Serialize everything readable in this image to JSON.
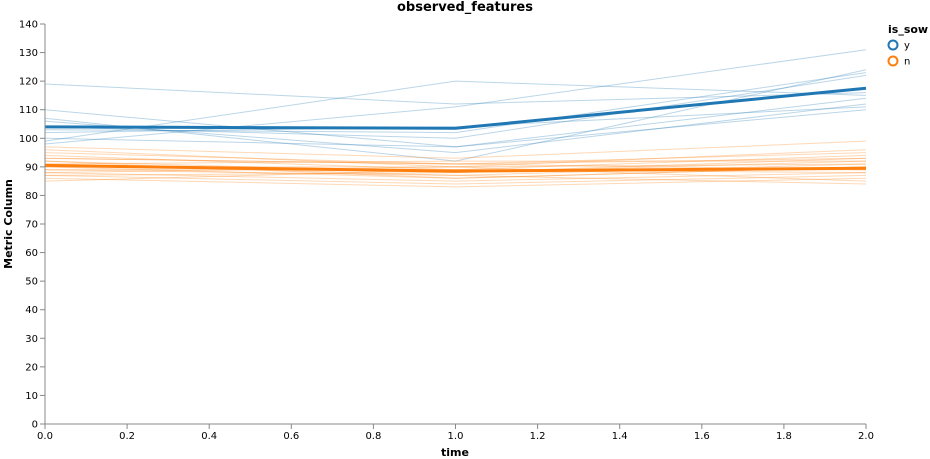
{
  "chart_data": {
    "type": "line",
    "title": "observed_features",
    "xlabel": "time",
    "ylabel": "Metric Column",
    "xlim": [
      0,
      2
    ],
    "ylim": [
      0,
      140
    ],
    "x_ticks": [
      0,
      0.2,
      0.4,
      0.6,
      0.8,
      1,
      1.2,
      1.4,
      1.6,
      1.8,
      2
    ],
    "x_tick_labels": [
      "0.0",
      "0.2",
      "0.4",
      "0.6",
      "0.8",
      "1.0",
      "1.2",
      "1.4",
      "1.6",
      "1.8",
      "2.0"
    ],
    "y_ticks": [
      0,
      10,
      20,
      30,
      40,
      50,
      60,
      70,
      80,
      90,
      100,
      110,
      120,
      130,
      140
    ],
    "y_tick_labels": [
      "0",
      "10",
      "20",
      "30",
      "40",
      "50",
      "60",
      "70",
      "80",
      "90",
      "100",
      "110",
      "120",
      "130",
      "140"
    ],
    "grid": false,
    "x": [
      0,
      1,
      2
    ],
    "legend": {
      "title": "is_sow",
      "position": "top-right",
      "entries": [
        {
          "label": "y",
          "color": "#1f77b4"
        },
        {
          "label": "n",
          "color": "#ff7f0e"
        }
      ]
    },
    "series": [
      {
        "name": "y",
        "color": "#1f77b4",
        "values": [
          104,
          103.5,
          117.5
        ]
      },
      {
        "name": "n",
        "color": "#ff7f0e",
        "values": [
          90.5,
          88.5,
          89.5
        ]
      }
    ],
    "individual_series": [
      {
        "group": "y",
        "values": [
          119,
          112,
          116
        ]
      },
      {
        "group": "y",
        "values": [
          110,
          97,
          114
        ]
      },
      {
        "group": "y",
        "values": [
          107,
          92,
          124
        ]
      },
      {
        "group": "y",
        "values": [
          99,
          120,
          115
        ]
      },
      {
        "group": "y",
        "values": [
          98,
          111,
          131
        ]
      },
      {
        "group": "y",
        "values": [
          104,
          100,
          122
        ]
      },
      {
        "group": "y",
        "values": [
          102,
          104,
          111
        ]
      },
      {
        "group": "y",
        "values": [
          100,
          97,
          110
        ]
      },
      {
        "group": "y",
        "values": [
          106,
          95,
          112
        ]
      },
      {
        "group": "y",
        "values": [
          103,
          102,
          123
        ]
      },
      {
        "group": "n",
        "values": [
          97,
          93,
          99
        ]
      },
      {
        "group": "n",
        "values": [
          96,
          90,
          96
        ]
      },
      {
        "group": "n",
        "values": [
          95,
          91,
          95
        ]
      },
      {
        "group": "n",
        "values": [
          94,
          89,
          94
        ]
      },
      {
        "group": "n",
        "values": [
          93,
          91,
          93
        ]
      },
      {
        "group": "n",
        "values": [
          92,
          88,
          92
        ]
      },
      {
        "group": "n",
        "values": [
          91,
          87,
          91
        ]
      },
      {
        "group": "n",
        "values": [
          90,
          86,
          90
        ]
      },
      {
        "group": "n",
        "values": [
          89,
          89,
          89
        ]
      },
      {
        "group": "n",
        "values": [
          88,
          85,
          88
        ]
      },
      {
        "group": "n",
        "values": [
          87,
          84,
          87
        ]
      },
      {
        "group": "n",
        "values": [
          86,
          83,
          86
        ]
      },
      {
        "group": "n",
        "values": [
          90,
          90,
          85
        ]
      },
      {
        "group": "n",
        "values": [
          89,
          87,
          84
        ]
      },
      {
        "group": "n",
        "values": [
          91,
          92,
          92
        ]
      },
      {
        "group": "n",
        "values": [
          88,
          90,
          91
        ]
      },
      {
        "group": "n",
        "values": [
          87,
          88,
          93
        ]
      },
      {
        "group": "n",
        "values": [
          92,
          86,
          90
        ]
      },
      {
        "group": "n",
        "values": [
          85,
          89,
          88
        ]
      },
      {
        "group": "n",
        "values": [
          93,
          91,
          89
        ]
      }
    ]
  }
}
